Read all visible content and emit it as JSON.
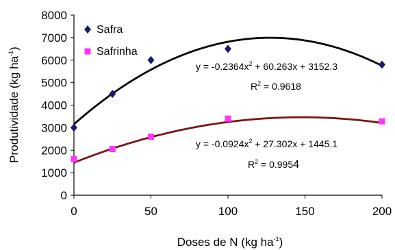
{
  "chart_data": {
    "type": "scatter",
    "xlabel": "Doses de N (kg ha",
    "xlabel_sup": "-1",
    "xlabel_tail": ")",
    "ylabel": "Produtividade (kg ha",
    "ylabel_sup": "-1",
    "ylabel_tail": ")",
    "xlim": [
      0,
      200
    ],
    "ylim": [
      0,
      8000
    ],
    "xticks": [
      0,
      50,
      100,
      150,
      200
    ],
    "yticks": [
      0,
      1000,
      2000,
      3000,
      4000,
      5000,
      6000,
      7000,
      8000
    ],
    "grid": false,
    "legend_position": "top-left",
    "series": [
      {
        "name": "Safra",
        "marker": "diamond",
        "color": "#1a1a6e",
        "curve_color": "#000000",
        "x": [
          0,
          25,
          50,
          100,
          200
        ],
        "y": [
          3000,
          4500,
          6000,
          6500,
          5800
        ],
        "fit": {
          "a": -0.2364,
          "b": 60.263,
          "c": 3152.3
        },
        "equation": {
          "pre": "y = -0.2364x",
          "sup": "2",
          "post": " + 60.263x + 3152.3"
        },
        "r2": {
          "pre": "R",
          "sup": "2",
          "post": " = 0.9618"
        }
      },
      {
        "name": "Safrinha",
        "marker": "square",
        "color": "#ff33ff",
        "curve_color": "#7a1414",
        "x": [
          0,
          25,
          50,
          100,
          200
        ],
        "y": [
          1600,
          2050,
          2600,
          3400,
          3280
        ],
        "fit": {
          "a": -0.0924,
          "b": 27.302,
          "c": 1445.1
        },
        "equation": {
          "pre": "y = -0.0924x",
          "sup": "2",
          "post": " + 27.302x + 1445.1"
        },
        "r2": {
          "pre": "R",
          "sup": "2",
          "post": " = 0.995",
          "last_digit": "4"
        }
      }
    ]
  }
}
